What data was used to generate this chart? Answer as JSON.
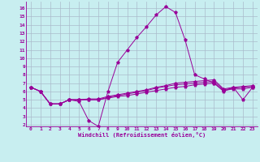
{
  "xlabel": "Windchill (Refroidissement éolien,°C)",
  "x_ticks": [
    0,
    1,
    2,
    3,
    4,
    5,
    6,
    7,
    8,
    9,
    10,
    11,
    12,
    13,
    14,
    15,
    16,
    17,
    18,
    19,
    20,
    21,
    22,
    23
  ],
  "y_ticks": [
    2,
    3,
    4,
    5,
    6,
    7,
    8,
    9,
    10,
    11,
    12,
    13,
    14,
    15,
    16
  ],
  "ylim": [
    1.8,
    16.8
  ],
  "xlim": [
    -0.5,
    23.5
  ],
  "bg_color": "#c8eef0",
  "line_color": "#990099",
  "grid_color": "#aabbcc",
  "series1": [
    6.5,
    6.0,
    4.5,
    4.5,
    5.0,
    4.8,
    2.5,
    1.8,
    6.0,
    9.5,
    11.0,
    12.5,
    13.8,
    15.2,
    16.2,
    15.5,
    12.2,
    8.0,
    7.5,
    7.0,
    6.0,
    6.5,
    5.0,
    6.5
  ],
  "series2": [
    6.5,
    6.0,
    4.5,
    4.5,
    5.0,
    5.0,
    5.0,
    5.0,
    5.2,
    5.4,
    5.5,
    5.7,
    5.9,
    6.1,
    6.3,
    6.5,
    6.6,
    6.8,
    6.9,
    7.0,
    6.1,
    6.3,
    6.3,
    6.5
  ],
  "series3": [
    6.5,
    6.0,
    4.5,
    4.5,
    5.0,
    5.0,
    5.0,
    5.0,
    5.3,
    5.5,
    5.7,
    5.9,
    6.1,
    6.4,
    6.6,
    6.8,
    6.9,
    7.0,
    7.1,
    7.2,
    6.2,
    6.4,
    6.5,
    6.6
  ],
  "series4": [
    6.5,
    6.0,
    4.5,
    4.5,
    5.0,
    5.0,
    5.1,
    5.1,
    5.4,
    5.6,
    5.8,
    6.0,
    6.2,
    6.5,
    6.7,
    7.0,
    7.1,
    7.2,
    7.3,
    7.4,
    6.3,
    6.5,
    6.6,
    6.7
  ]
}
